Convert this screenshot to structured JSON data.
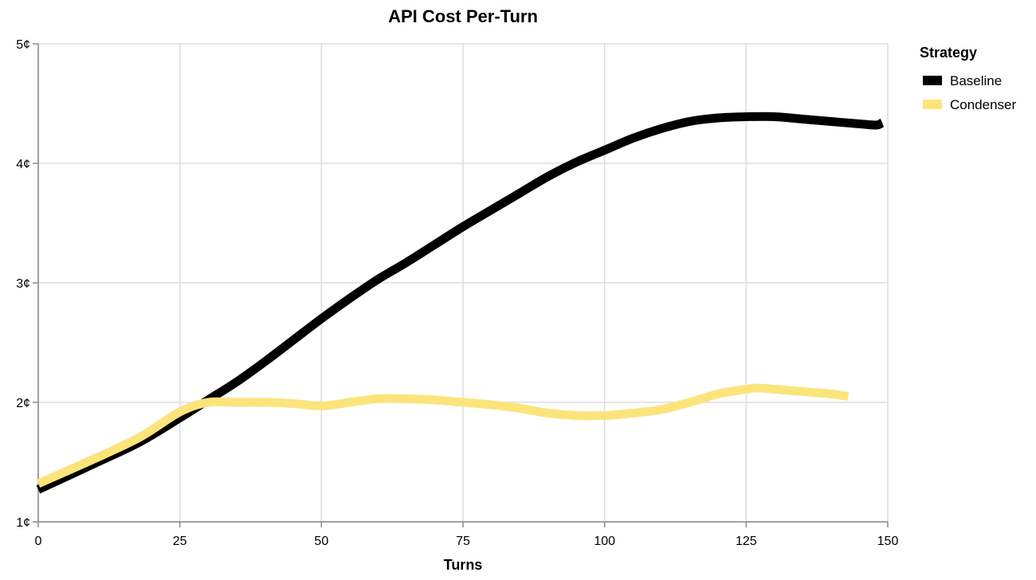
{
  "chart_data": {
    "type": "line",
    "title": "API Cost Per-Turn",
    "xlabel": "Turns",
    "ylabel": "",
    "xlim": [
      0,
      150
    ],
    "ylim": [
      1,
      5
    ],
    "x_ticks": [
      0,
      25,
      50,
      75,
      100,
      125,
      150
    ],
    "x_tick_labels": [
      "0",
      "25",
      "50",
      "75",
      "100",
      "125",
      "150"
    ],
    "y_ticks": [
      1,
      2,
      3,
      4,
      5
    ],
    "y_tick_labels": [
      "1¢",
      "2¢",
      "3¢",
      "4¢",
      "5¢"
    ],
    "grid": true,
    "legend": {
      "title": "Strategy",
      "placement": "right"
    },
    "series": [
      {
        "name": "Baseline",
        "color": "#000000",
        "x": [
          0,
          10,
          18,
          25,
          30,
          35,
          40,
          45,
          50,
          55,
          60,
          65,
          70,
          75,
          80,
          85,
          90,
          95,
          100,
          105,
          110,
          115,
          120,
          125,
          130,
          135,
          140,
          145,
          148,
          149
        ],
        "y": [
          1.27,
          1.49,
          1.67,
          1.87,
          2.02,
          2.17,
          2.34,
          2.52,
          2.7,
          2.87,
          3.03,
          3.17,
          3.32,
          3.47,
          3.61,
          3.75,
          3.89,
          4.01,
          4.11,
          4.21,
          4.29,
          4.35,
          4.38,
          4.39,
          4.39,
          4.37,
          4.35,
          4.33,
          4.32,
          4.34
        ]
      },
      {
        "name": "Condenser",
        "color": "#fce47c",
        "x": [
          0,
          10,
          18,
          25,
          30,
          35,
          40,
          45,
          50,
          55,
          60,
          65,
          70,
          75,
          80,
          85,
          90,
          95,
          100,
          105,
          110,
          115,
          120,
          125,
          127,
          130,
          135,
          140,
          143
        ],
        "y": [
          1.32,
          1.53,
          1.71,
          1.92,
          2.0,
          2.0,
          2.0,
          1.99,
          1.97,
          2.0,
          2.03,
          2.03,
          2.02,
          2.0,
          1.98,
          1.95,
          1.91,
          1.89,
          1.89,
          1.91,
          1.94,
          2.0,
          2.07,
          2.11,
          2.12,
          2.11,
          2.09,
          2.07,
          2.05
        ]
      }
    ]
  }
}
